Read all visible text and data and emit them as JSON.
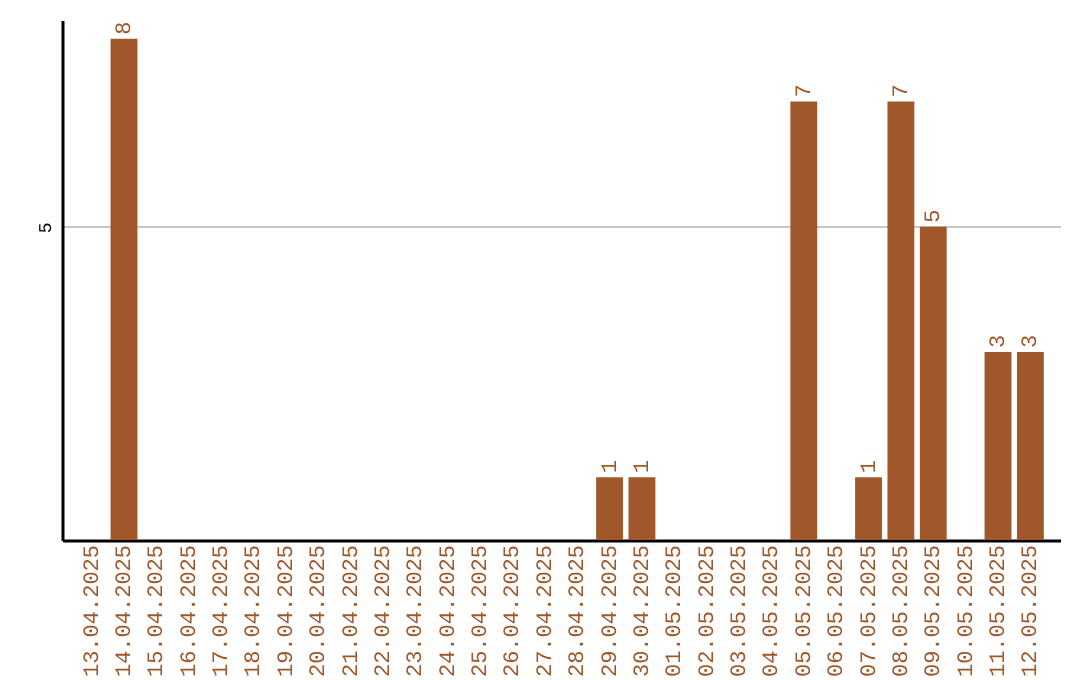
{
  "chart_data": {
    "type": "bar",
    "categories": [
      "13.04.2025",
      "14.04.2025",
      "15.04.2025",
      "16.04.2025",
      "17.04.2025",
      "18.04.2025",
      "19.04.2025",
      "20.04.2025",
      "21.04.2025",
      "22.04.2025",
      "23.04.2025",
      "24.04.2025",
      "25.04.2025",
      "26.04.2025",
      "27.04.2025",
      "28.04.2025",
      "29.04.2025",
      "30.04.2025",
      "01.05.2025",
      "02.05.2025",
      "03.05.2025",
      "04.05.2025",
      "05.05.2025",
      "06.05.2025",
      "07.05.2025",
      "08.05.2025",
      "09.05.2025",
      "10.05.2025",
      "11.05.2025",
      "12.05.2025"
    ],
    "values": [
      0,
      8,
      0,
      0,
      0,
      0,
      0,
      0,
      0,
      0,
      0,
      0,
      0,
      0,
      0,
      0,
      1,
      1,
      0,
      0,
      0,
      0,
      7,
      0,
      1,
      7,
      5,
      0,
      3,
      3
    ],
    "value_labels": [
      null,
      "8",
      null,
      null,
      null,
      null,
      null,
      null,
      null,
      null,
      null,
      null,
      null,
      null,
      null,
      null,
      "1",
      "1",
      null,
      null,
      null,
      null,
      "7",
      null,
      "1",
      "7",
      "5",
      null,
      "3",
      "3"
    ],
    "color": "#a0572a",
    "ylim": [
      0,
      8.3
    ],
    "yticks": [
      5
    ],
    "grid": "y"
  }
}
